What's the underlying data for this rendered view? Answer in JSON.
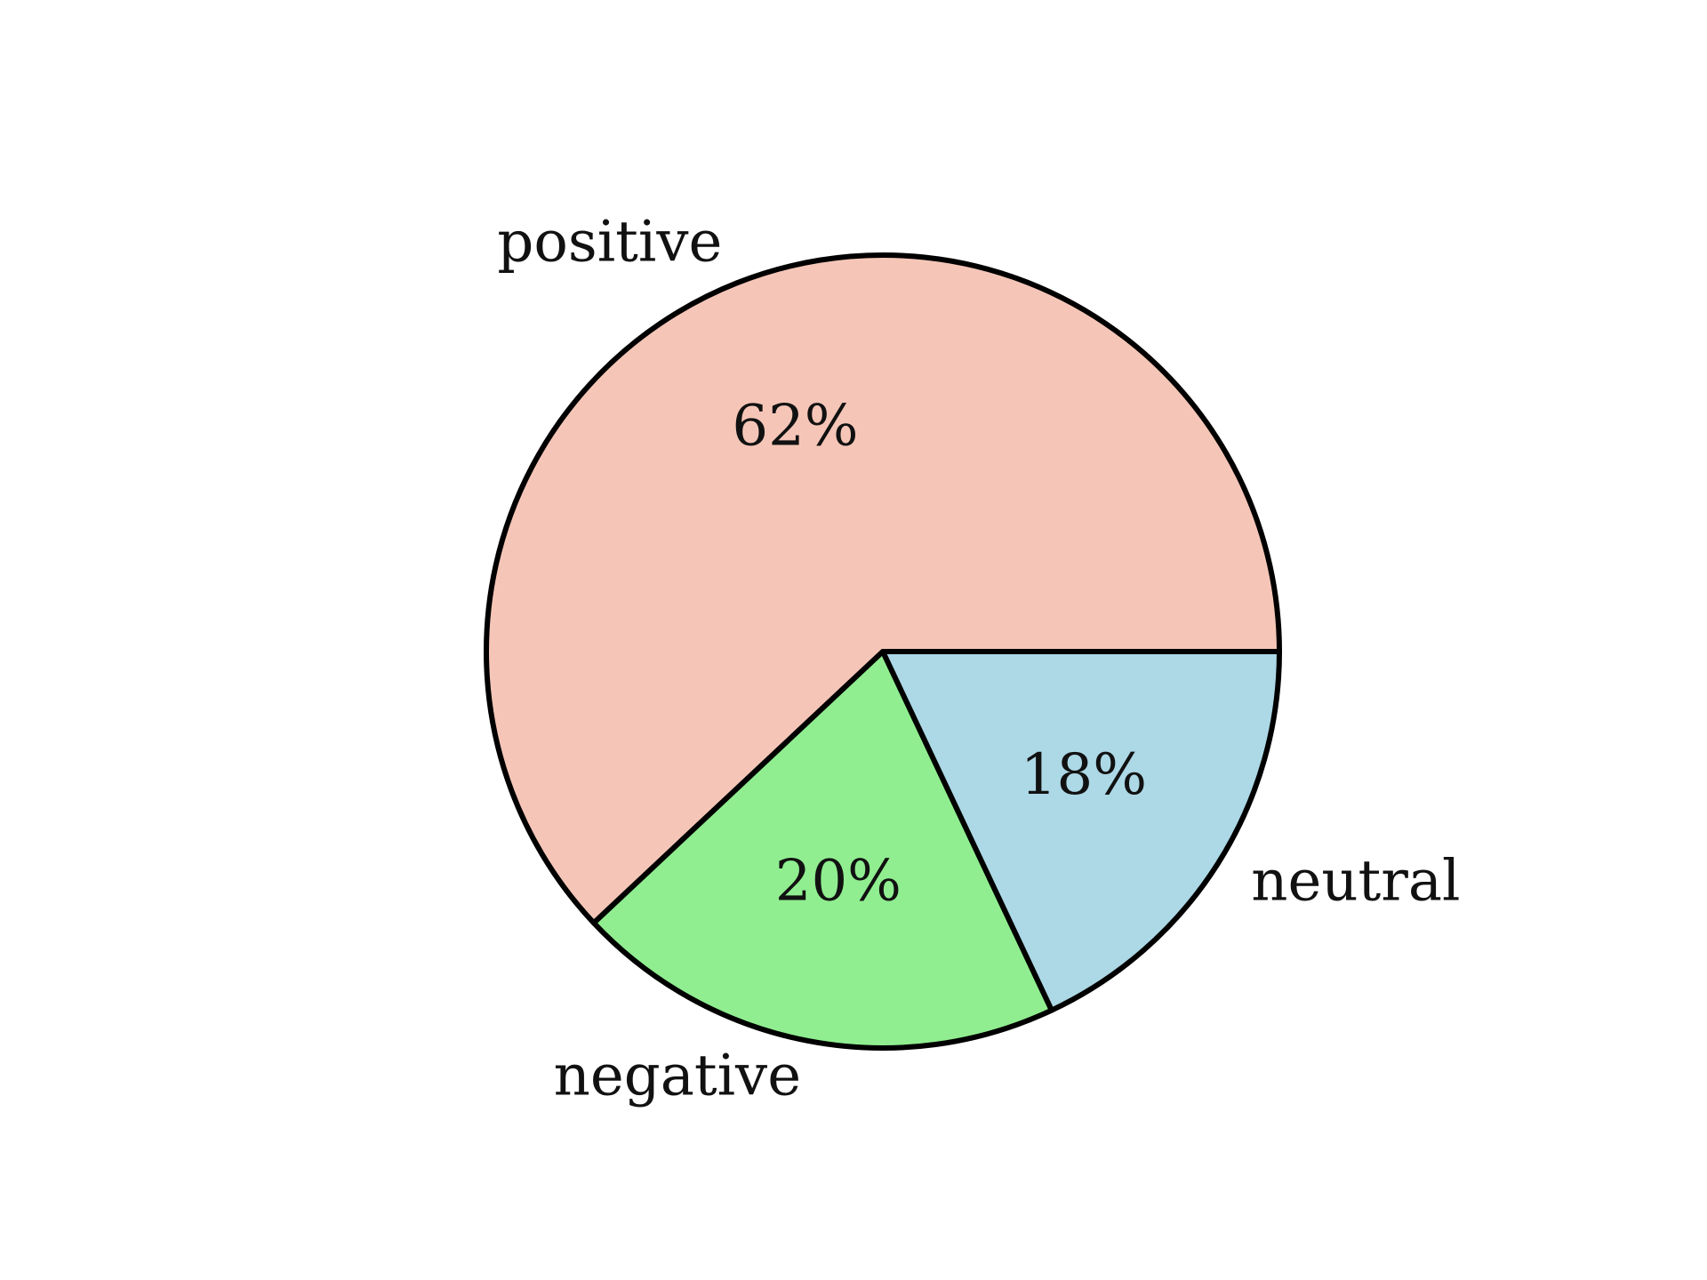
{
  "chart_data": {
    "type": "pie",
    "title": "",
    "start_angle_deg": 0,
    "direction": "counterclockwise",
    "slices": [
      {
        "label": "positive",
        "value": 62,
        "value_label": "62%",
        "color": "#F5C6B8"
      },
      {
        "label": "negative",
        "value": 20,
        "value_label": "20%",
        "color": "#90EE90"
      },
      {
        "label": "neutral",
        "value": 18,
        "value_label": "18%",
        "color": "#ADD8E6"
      }
    ],
    "edge_color": "#000000",
    "labels_outside": true,
    "percent_labels_inside": true
  }
}
